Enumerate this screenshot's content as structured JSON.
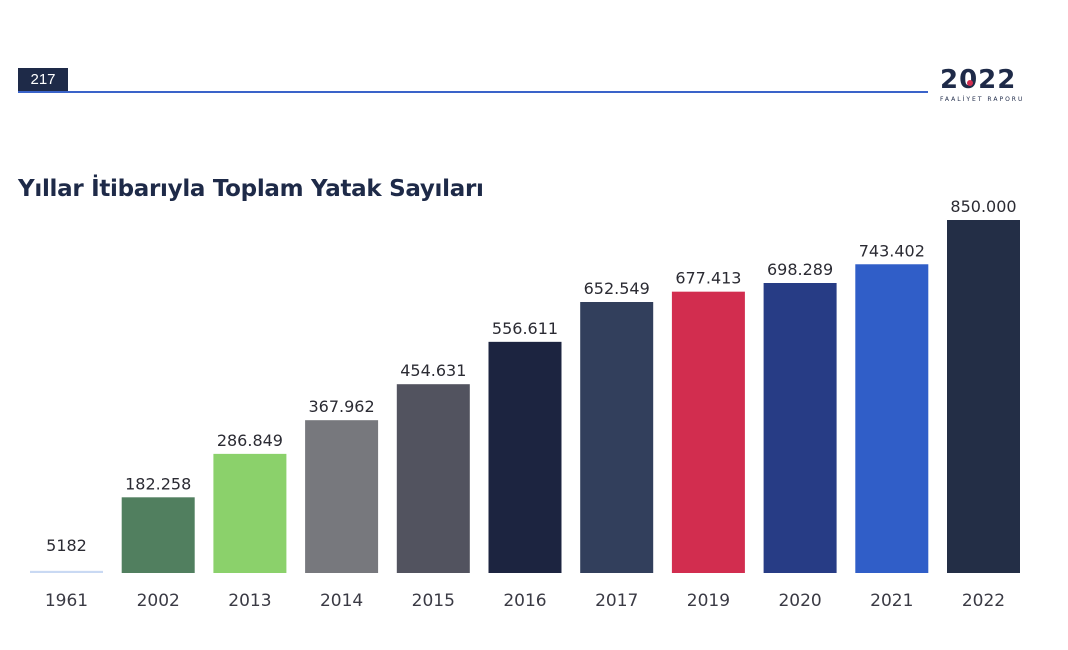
{
  "page_number": "217",
  "brand": {
    "year": "2022",
    "subtitle": "FAALİYET RAPORU"
  },
  "chart_data": {
    "type": "bar",
    "title": "Yıllar İtibarıyla Toplam Yatak Sayıları",
    "xlabel": "",
    "ylabel": "",
    "ylim": [
      0,
      850000
    ],
    "grid": false,
    "legend": "none",
    "categories": [
      "1961",
      "2002",
      "2013",
      "2014",
      "2015",
      "2016",
      "2017",
      "2019",
      "2020",
      "2021",
      "2022"
    ],
    "values": [
      5182,
      182258,
      286849,
      367962,
      454631,
      556611,
      652549,
      677413,
      698289,
      743402,
      850000
    ],
    "value_labels": [
      "5182",
      "182.258",
      "286.849",
      "367.962",
      "454.631",
      "556.611",
      "652.549",
      "677.413",
      "698.289",
      "743.402",
      "850.000"
    ],
    "colors": [
      "#c9d9f3",
      "#517f5f",
      "#8bd16b",
      "#77787d",
      "#52535f",
      "#1c2440",
      "#323f5c",
      "#d22d4f",
      "#273c85",
      "#305ec8",
      "#232e46"
    ]
  }
}
